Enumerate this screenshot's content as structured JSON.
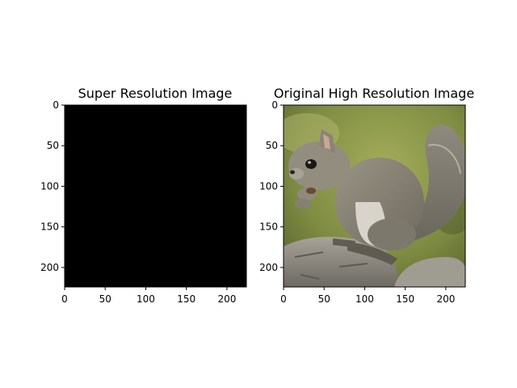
{
  "figure": {
    "background": "#ffffff"
  },
  "chart_data": [
    {
      "type": "image",
      "title": "Super Resolution Image",
      "image_size": [
        224,
        224
      ],
      "content": "solid black",
      "fill_color": "#000000",
      "xlim": [
        0,
        224
      ],
      "ylim": [
        224,
        0
      ],
      "x_ticks": [
        0,
        50,
        100,
        150,
        200
      ],
      "y_ticks": [
        0,
        50,
        100,
        150,
        200
      ],
      "grid": false
    },
    {
      "type": "image",
      "title": "Original High Resolution Image",
      "image_size": [
        224,
        224
      ],
      "content": "photo: grey squirrel eating, perched on a rock, blurred green background",
      "colors": {
        "background_green": "#8a9a4a",
        "background_dark": "#5f6b34",
        "squirrel_grey": "#8c877a",
        "squirrel_belly": "#d8d4cc",
        "rock_grey": "#9a958b",
        "rock_dark": "#6e6a62"
      },
      "xlim": [
        0,
        224
      ],
      "ylim": [
        224,
        0
      ],
      "x_ticks": [
        0,
        50,
        100,
        150,
        200
      ],
      "y_ticks": [
        0,
        50,
        100,
        150,
        200
      ],
      "grid": false
    }
  ]
}
